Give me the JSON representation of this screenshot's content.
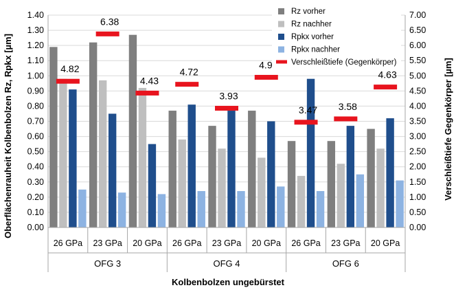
{
  "chart_data": {
    "type": "bar",
    "xlabel": "Kolbenbolzen ungebürstet",
    "ylabel": "Oberflächenrauheit Kolbenbolzen Rz, Rpkx [µm]",
    "y2label": "Verschleißtiefe Gegenkörper [µm]",
    "ylim": [
      0,
      1.4
    ],
    "y2lim": [
      0,
      7
    ],
    "grid": true,
    "legend_position": "top-right",
    "groups": [
      {
        "name": "OFG 3",
        "categories": [
          "26 GPa",
          "23 GPa",
          "20 GPa"
        ]
      },
      {
        "name": "OFG 4",
        "categories": [
          "26 GPa",
          "23 GPa",
          "20 GPa"
        ]
      },
      {
        "name": "OFG 6",
        "categories": [
          "26 GPa",
          "23 GPa",
          "20 GPa"
        ]
      }
    ],
    "series": [
      {
        "name": "Rz vorher",
        "color": "#7f7f7f",
        "axis": "left",
        "values": [
          1.19,
          1.22,
          1.27,
          0.77,
          0.67,
          0.77,
          0.57,
          0.57,
          0.65
        ]
      },
      {
        "name": "Rz nachher",
        "color": "#bfbfbf",
        "axis": "left",
        "values": [
          0.98,
          0.97,
          0.92,
          0.58,
          0.52,
          0.46,
          0.34,
          0.42,
          0.52
        ]
      },
      {
        "name": "Rpkx vorher",
        "color": "#1f4e8c",
        "axis": "left",
        "values": [
          0.91,
          0.75,
          0.55,
          0.81,
          0.77,
          0.7,
          0.98,
          0.67,
          0.72
        ]
      },
      {
        "name": "Rpkx nachher",
        "color": "#8db3e2",
        "axis": "left",
        "values": [
          0.25,
          0.23,
          0.22,
          0.24,
          0.24,
          0.27,
          0.24,
          0.35,
          0.31
        ]
      },
      {
        "name": "Verschleißtiefe (Gegenkörper)",
        "color": "#e8141e",
        "axis": "right",
        "marker": "dash",
        "values": [
          4.82,
          6.38,
          4.43,
          4.72,
          3.93,
          4.95,
          3.47,
          3.58,
          4.63
        ],
        "labels": [
          "4.82",
          "6.38",
          "4.43",
          "4.72",
          "3.93",
          "4.95",
          "3.47",
          "3.58",
          "4.63"
        ]
      }
    ],
    "y_ticks": [
      "0.00",
      "0.10",
      "0.20",
      "0.30",
      "0.40",
      "0.50",
      "0.60",
      "0.70",
      "0.80",
      "0.90",
      "1.00",
      "1.10",
      "1.20",
      "1.30",
      "1.40"
    ],
    "y2_ticks": [
      "0.00",
      "0.50",
      "1.00",
      "1.50",
      "2.00",
      "2.50",
      "3.00",
      "3.50",
      "4.00",
      "4.50",
      "5.00",
      "5.50",
      "6.00",
      "6.50",
      "7.00"
    ]
  }
}
